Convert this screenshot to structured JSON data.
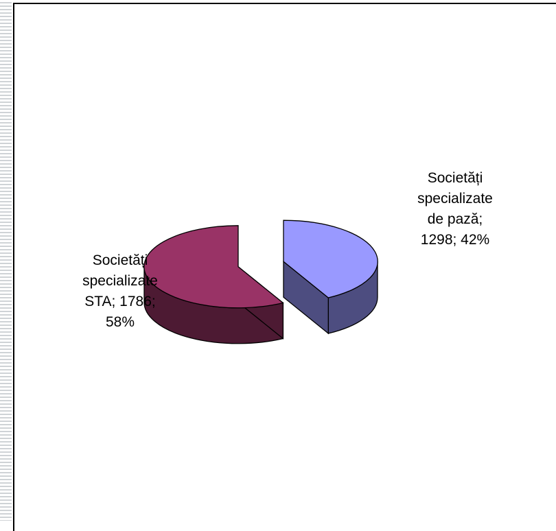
{
  "chart_data": {
    "type": "pie",
    "title": "",
    "categories": [
      "Societăți specializate de pază",
      "Societăți specializate STA"
    ],
    "values": [
      1298,
      1786
    ],
    "percent": [
      42,
      58
    ],
    "colors": {
      "top": [
        "#9999FF",
        "#993366"
      ],
      "side": [
        "#4D4D80",
        "#4D1A33"
      ]
    },
    "data_labels": [
      [
        "Societăți",
        "specializate",
        "de pază;",
        "1298; 42%"
      ],
      [
        "Societăți",
        "specializate",
        "STA; 1786;",
        "58%"
      ]
    ],
    "style": "3d-exploded",
    "legend": "none"
  }
}
